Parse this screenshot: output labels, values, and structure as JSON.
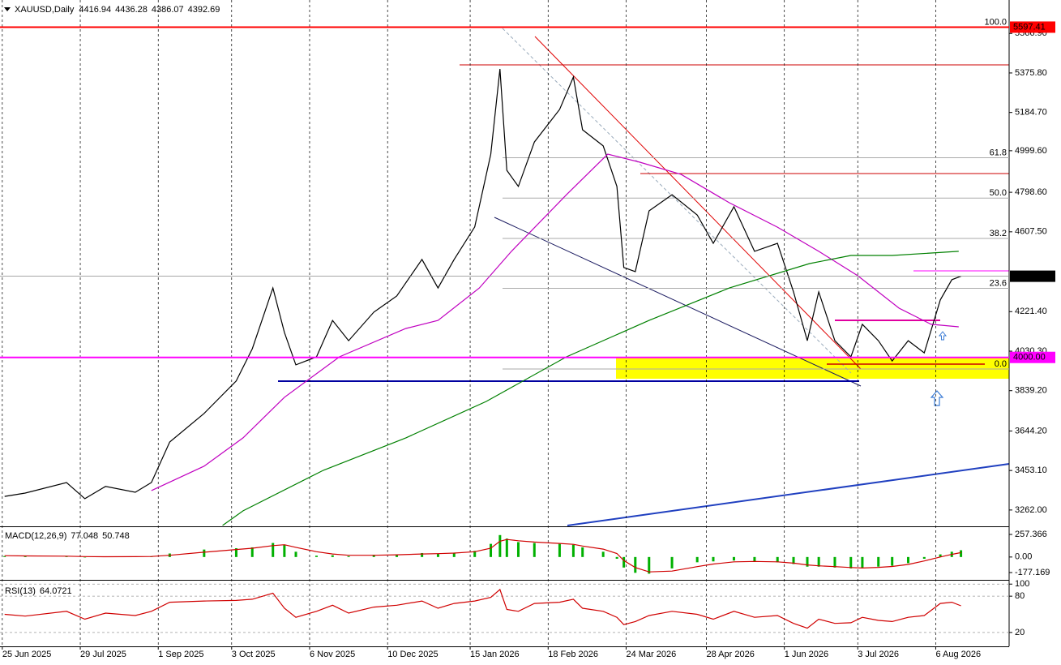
{
  "chart_data": [
    {
      "type": "line",
      "title": "XAUUSD,Daily",
      "ohlc": [
        4416.94,
        4436.28,
        4386.07,
        4392.69
      ],
      "xlim": [
        "2025-06-24",
        "2026-09-07"
      ],
      "xticks": [
        {
          "value": "2025-06-25",
          "label": "25 Jun 2025"
        },
        {
          "value": "2025-07-29",
          "label": "29 Jul 2025"
        },
        {
          "value": "2025-09-01",
          "label": "1 Sep 2025"
        },
        {
          "value": "2025-10-03",
          "label": "3 Oct 2025"
        },
        {
          "value": "2025-11-06",
          "label": "6 Nov 2025"
        },
        {
          "value": "2025-12-10",
          "label": "10 Dec 2025"
        },
        {
          "value": "2026-01-15",
          "label": "15 Jan 2026"
        },
        {
          "value": "2026-02-18",
          "label": "18 Feb 2026"
        },
        {
          "value": "2026-03-24",
          "label": "24 Mar 2026"
        },
        {
          "value": "2026-04-28",
          "label": "28 Apr 2026"
        },
        {
          "value": "2026-06-01",
          "label": "1 Jun 2026"
        },
        {
          "value": "2026-07-03",
          "label": "3 Jul 2026"
        },
        {
          "value": "2026-08-06",
          "label": "6 Aug 2026"
        }
      ],
      "grid": "vertical",
      "ylim": [
        3187,
        5709
      ],
      "yticks": [
        {
          "value": 5566.9,
          "label": "5566.90"
        },
        {
          "value": 5375.8,
          "label": "5375.80"
        },
        {
          "value": 5184.7,
          "label": "5184.70"
        },
        {
          "value": 4999.6,
          "label": "4999.60"
        },
        {
          "value": 4798.6,
          "label": "4798.60"
        },
        {
          "value": 4607.5,
          "label": "4607.50"
        },
        {
          "value": 4221.4,
          "label": "4221.40"
        },
        {
          "value": 4030.3,
          "label": "4030.30"
        },
        {
          "value": 3839.2,
          "label": "3839.20"
        },
        {
          "value": 3644.2,
          "label": "3644.20"
        },
        {
          "value": 3453.1,
          "label": "3453.10"
        },
        {
          "value": 3262,
          "label": "3262.00"
        }
      ],
      "x": [
        "2025-06-26",
        "2025-07-05",
        "2025-07-23",
        "2025-07-31",
        "2025-08-09",
        "2025-08-22",
        "2025-08-29",
        "2025-09-06",
        "2025-09-21",
        "2025-10-05",
        "2025-10-12",
        "2025-10-21",
        "2025-10-26",
        "2025-10-31",
        "2025-11-09",
        "2025-11-16",
        "2025-11-23",
        "2025-12-04",
        "2025-12-14",
        "2025-12-25",
        "2026-01-01",
        "2026-01-08",
        "2026-01-17",
        "2026-01-24",
        "2026-01-28",
        "2026-01-31",
        "2026-02-05",
        "2026-02-12",
        "2026-02-23",
        "2026-03-01",
        "2026-03-05",
        "2026-03-14",
        "2026-03-20",
        "2026-03-23",
        "2026-03-28",
        "2026-04-03",
        "2026-04-13",
        "2026-04-24",
        "2026-05-01",
        "2026-05-10",
        "2026-05-19",
        "2026-05-29",
        "2026-06-05",
        "2026-06-11",
        "2026-06-16",
        "2026-06-23",
        "2026-06-30",
        "2026-07-05",
        "2026-07-12",
        "2026-07-18",
        "2026-07-25",
        "2026-08-01",
        "2026-08-08",
        "2026-08-13",
        "2026-08-17"
      ],
      "series": [
        {
          "color": "#000000",
          "values": [
            3328,
            3344,
            3395,
            3317,
            3376,
            3348,
            3395,
            3591,
            3729,
            3886,
            4042,
            4336,
            4121,
            3964,
            4003,
            4179,
            4081,
            4219,
            4297,
            4474,
            4336,
            4474,
            4631,
            4983,
            5395,
            4905,
            4827,
            5042,
            5199,
            5356,
            5101,
            5023,
            4827,
            4435,
            4415,
            4709,
            4787,
            4689,
            4552,
            4729,
            4513,
            4552,
            4317,
            4081,
            4317,
            4081,
            4003,
            4160,
            4081,
            3983,
            4081,
            4022,
            4278,
            4376,
            4392.69
          ]
        },
        {
          "color": "#c000c0",
          "x": [
            "2025-08-29",
            "2025-09-21",
            "2025-10-08",
            "2025-10-26",
            "2025-11-19",
            "2025-12-18",
            "2026-01-01",
            "2026-01-19",
            "2026-02-02",
            "2026-02-26",
            "2026-03-16",
            "2026-03-30",
            "2026-04-17",
            "2026-05-08",
            "2026-05-29",
            "2026-06-16",
            "2026-07-03",
            "2026-07-21",
            "2026-08-04",
            "2026-08-16"
          ],
          "values": [
            3356,
            3474,
            3611,
            3807,
            4003,
            4140,
            4179,
            4336,
            4513,
            4787,
            4983,
            4944,
            4885,
            4748,
            4630,
            4513,
            4395,
            4238,
            4160,
            4148
          ]
        },
        {
          "color": "#008000",
          "x": [
            "2025-09-29",
            "2025-10-08",
            "2025-11-12",
            "2025-12-18",
            "2026-01-22",
            "2026-02-26",
            "2026-04-03",
            "2026-05-08",
            "2026-06-12",
            "2026-06-30",
            "2026-07-18",
            "2026-08-16"
          ],
          "values": [
            3187,
            3258,
            3454,
            3611,
            3787,
            4003,
            4179,
            4336,
            4454,
            4493,
            4493,
            4513
          ]
        }
      ],
      "levels": [
        {
          "value": 5597.41,
          "label": "5597.41",
          "color": "#ff0000"
        },
        {
          "value": 4000,
          "label": "4000.00",
          "color": "#ff00ff"
        }
      ],
      "fibonacci": {
        "range": [
          3944,
          5597.41
        ],
        "levels": [
          {
            "value": 100,
            "label": "100.0"
          },
          {
            "value": 61.8,
            "label": "61.8"
          },
          {
            "value": 50,
            "label": "50.0"
          },
          {
            "value": 38.2,
            "label": "38.2"
          },
          {
            "value": 23.6,
            "label": "23.6"
          },
          {
            "value": 0,
            "label": "0.0"
          }
        ]
      }
    },
    {
      "type": "macd",
      "title": "MACD(12,26,9)",
      "ylim": [
        -251,
        322
      ],
      "yticks": [
        {
          "value": 257.366,
          "label": "257.366"
        },
        {
          "value": 0,
          "label": "0.00"
        },
        {
          "value": -177.169,
          "label": "-177.169"
        }
      ],
      "x": [
        "2025-06-26",
        "2025-07-05",
        "2025-07-23",
        "2025-07-31",
        "2025-08-09",
        "2025-08-22",
        "2025-08-29",
        "2025-09-06",
        "2025-09-21",
        "2025-10-05",
        "2025-10-12",
        "2025-10-21",
        "2025-10-26",
        "2025-10-31",
        "2025-11-09",
        "2025-11-16",
        "2025-11-23",
        "2025-12-04",
        "2025-12-14",
        "2025-12-25",
        "2026-01-01",
        "2026-01-08",
        "2026-01-17",
        "2026-01-24",
        "2026-01-28",
        "2026-01-31",
        "2026-02-05",
        "2026-02-12",
        "2026-02-23",
        "2026-03-01",
        "2026-03-05",
        "2026-03-14",
        "2026-03-20",
        "2026-03-23",
        "2026-03-28",
        "2026-04-03",
        "2026-04-13",
        "2026-04-24",
        "2026-05-01",
        "2026-05-10",
        "2026-05-19",
        "2026-05-29",
        "2026-06-05",
        "2026-06-11",
        "2026-06-16",
        "2026-06-23",
        "2026-06-30",
        "2026-07-05",
        "2026-07-12",
        "2026-07-18",
        "2026-07-25",
        "2026-08-01",
        "2026-08-08",
        "2026-08-13",
        "2026-08-17"
      ],
      "series": [
        {
          "color": "#00b000",
          "values": [
            10,
            12,
            8,
            -5,
            5,
            3,
            8,
            40,
            85,
            100,
            110,
            160,
            140,
            60,
            15,
            20,
            10,
            25,
            30,
            45,
            35,
            50,
            70,
            150,
            250,
            210,
            170,
            160,
            150,
            140,
            110,
            60,
            -20,
            -120,
            -180,
            -190,
            -130,
            -60,
            -50,
            -40,
            -55,
            -60,
            -80,
            -110,
            -110,
            -120,
            -130,
            -125,
            -110,
            -100,
            -70,
            -20,
            30,
            60,
            77.048
          ]
        },
        {
          "color": "#d00000",
          "values": [
            15,
            12,
            10,
            5,
            3,
            4,
            6,
            20,
            55,
            85,
            100,
            130,
            140,
            110,
            60,
            35,
            20,
            20,
            25,
            35,
            38,
            45,
            60,
            100,
            180,
            200,
            185,
            170,
            155,
            145,
            125,
            90,
            40,
            -40,
            -120,
            -170,
            -160,
            -110,
            -80,
            -55,
            -50,
            -55,
            -70,
            -90,
            -100,
            -110,
            -120,
            -125,
            -118,
            -108,
            -85,
            -45,
            0,
            30,
            50.748
          ]
        }
      ]
    },
    {
      "type": "line",
      "title": "RSI(13)",
      "ylim": [
        -3,
        103
      ],
      "yticks": [
        100,
        80,
        20
      ],
      "grid": "horizontal",
      "x": [
        "2025-06-26",
        "2025-07-05",
        "2025-07-23",
        "2025-07-31",
        "2025-08-09",
        "2025-08-22",
        "2025-08-29",
        "2025-09-06",
        "2025-09-21",
        "2025-10-05",
        "2025-10-12",
        "2025-10-21",
        "2025-10-26",
        "2025-10-31",
        "2025-11-09",
        "2025-11-16",
        "2025-11-23",
        "2025-12-04",
        "2025-12-14",
        "2025-12-25",
        "2026-01-01",
        "2026-01-08",
        "2026-01-17",
        "2026-01-24",
        "2026-01-28",
        "2026-01-31",
        "2026-02-05",
        "2026-02-12",
        "2026-02-23",
        "2026-03-01",
        "2026-03-05",
        "2026-03-14",
        "2026-03-20",
        "2026-03-23",
        "2026-03-28",
        "2026-04-03",
        "2026-04-13",
        "2026-04-24",
        "2026-05-01",
        "2026-05-10",
        "2026-05-19",
        "2026-05-29",
        "2026-06-05",
        "2026-06-11",
        "2026-06-16",
        "2026-06-23",
        "2026-06-30",
        "2026-07-05",
        "2026-07-12",
        "2026-07-18",
        "2026-07-25",
        "2026-08-01",
        "2026-08-08",
        "2026-08-13",
        "2026-08-17"
      ],
      "series": [
        {
          "color": "#d00000",
          "values": [
            50,
            47,
            55,
            42,
            52,
            48,
            55,
            70,
            72,
            73,
            75,
            85,
            60,
            45,
            55,
            65,
            52,
            62,
            65,
            72,
            60,
            68,
            72,
            78,
            91,
            58,
            55,
            68,
            70,
            75,
            60,
            55,
            45,
            33,
            38,
            48,
            55,
            50,
            42,
            55,
            45,
            48,
            35,
            27,
            42,
            35,
            36,
            45,
            40,
            38,
            45,
            48,
            68,
            70,
            64.0721
          ]
        }
      ]
    }
  ]
}
